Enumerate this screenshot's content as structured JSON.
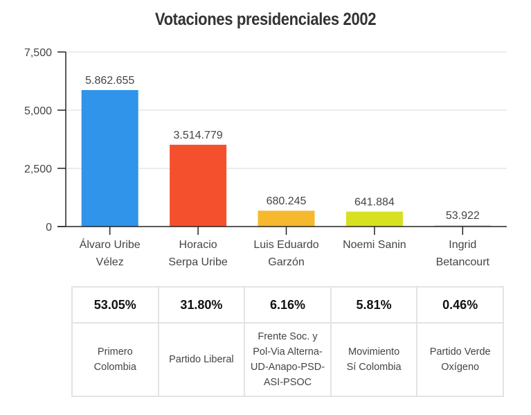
{
  "chart_data": {
    "type": "bar",
    "title": "Votaciones presidenciales 2002",
    "xlabel": "",
    "ylabel": "",
    "categories": [
      "Álvaro Uribe\nVélez",
      "Horacio\nSerpa Uribe",
      "Luis Eduardo\nGarzón",
      "Noemi Sanin",
      "Ingrid\nBetancourt"
    ],
    "values": [
      5862.655,
      3514.779,
      680.245,
      641.884,
      53.922
    ],
    "data_labels": [
      "5.862.655",
      "3.514.779",
      "680.245",
      "641.884",
      "53.922"
    ],
    "colors": [
      "#2f94ea",
      "#f5502d",
      "#f6b92e",
      "#d8e022",
      "#cfcfcf"
    ],
    "ylim": [
      0,
      7500
    ],
    "yticks": [
      0,
      2500,
      5000,
      7500
    ],
    "ytick_labels": [
      "0",
      "2,500",
      "5,000",
      "7,500"
    ],
    "grid": true,
    "legend": "none"
  },
  "table": {
    "percentages": [
      "53.05%",
      "31.80%",
      "6.16%",
      "5.81%",
      "0.46%"
    ],
    "parties": [
      "Primero\nColombia",
      "Partido Liberal",
      "Frente Soc. y\nPol-Via Alterna-\nUD-Anapo-PSD-\nASI-PSOC",
      "Movimiento\nSí Colombia",
      "Partido Verde\nOxígeno"
    ]
  }
}
